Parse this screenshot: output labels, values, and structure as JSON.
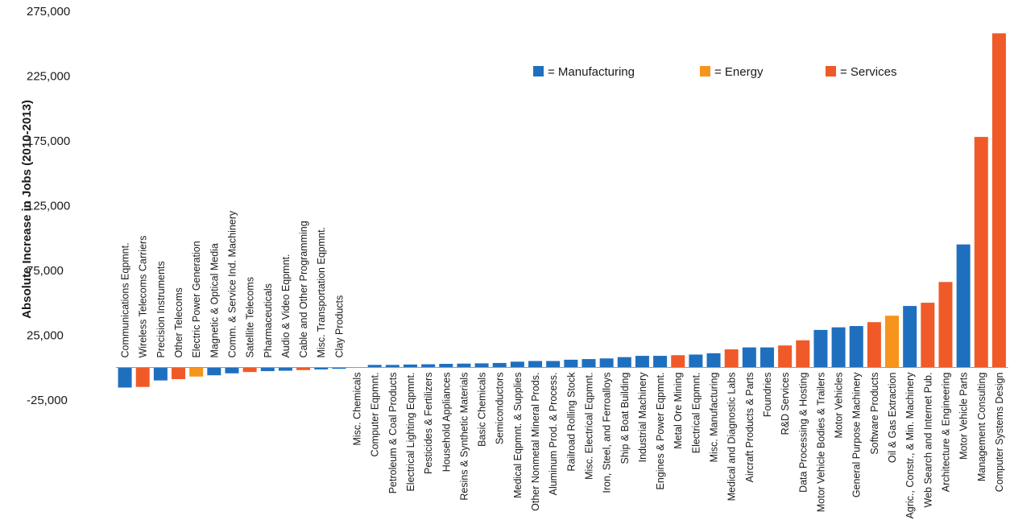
{
  "chart_data": {
    "type": "bar",
    "ylabel": "Absolute Increase in Jobs (2010-2013)",
    "ylim": [
      -50000,
      275000
    ],
    "yticks": [
      -25000,
      25000,
      75000,
      125000,
      175000,
      225000,
      275000
    ],
    "ytick_labels": [
      "-25,000",
      "25,000",
      "75,000",
      "125,000",
      "175,000",
      "225,000",
      "275,000"
    ],
    "grid": false,
    "legend_position": "top-right",
    "sectors": [
      {
        "key": "manufacturing",
        "label": "= Manufacturing",
        "color": "#1f6fbf"
      },
      {
        "key": "energy",
        "label": "= Energy",
        "color": "#f7941d"
      },
      {
        "key": "services",
        "label": "= Services",
        "color": "#f05a28"
      }
    ],
    "categories": [
      "Communications Eqpmnt.",
      "Wireless Telecoms Carriers",
      "Precision Instruments",
      "Other Telecoms",
      "Electric Power Generation",
      "Magnetic & Optical Media",
      "Comm. & Service Ind. Machinery",
      "Satellite Telecoms",
      "Pharmaceuticals",
      "Audio & Video Eqpmnt.",
      "Cable and Other Programming",
      "Misc. Transportation Eqpmnt.",
      "Clay Products",
      "Misc. Chemicals",
      "Computer Eqpmnt.",
      "Petroleum & Coal Products",
      "Electrical Lighting Eqpmnt.",
      "Pesticides & Fertilizers",
      "Household Appliances",
      "Resins & Synthetic Materials",
      "Basic Chemicals",
      "Semiconductors",
      "Medical Eqpmnt. & Supplies",
      "Other Nonmetal Mineral Prods.",
      "Aluminum Prod. & Process.",
      "Railroad Rolling Stock",
      "Misc. Electrical Eqpmnt.",
      "Iron, Steel, and Ferroalloys",
      "Ship & Boat Building",
      "Industrial Machinery",
      "Engines & Power Eqpmnt.",
      "Metal Ore Mining",
      "Electrical Eqpmnt.",
      "Misc. Manufacturing",
      "Medical and Diagnostic Labs",
      "Aircraft Products & Parts",
      "Foundries",
      "R&D Services",
      "Data Processing & Hosting",
      "Motor Vehicle Bodies & Trailers",
      "Motor Vehicles",
      "General Purpose Machinery",
      "Software Products",
      "Oil & Gas Extraction",
      "Agric., Constr., & Min. Machinery",
      "Web Search and Internet Pub.",
      "Architecture & Engineering",
      "Motor Vehicle Parts",
      "Management Consulting",
      "Computer Systems Design"
    ],
    "sector": [
      "manufacturing",
      "services",
      "manufacturing",
      "services",
      "energy",
      "manufacturing",
      "manufacturing",
      "services",
      "manufacturing",
      "manufacturing",
      "services",
      "manufacturing",
      "manufacturing",
      "manufacturing",
      "manufacturing",
      "manufacturing",
      "manufacturing",
      "manufacturing",
      "manufacturing",
      "manufacturing",
      "manufacturing",
      "manufacturing",
      "manufacturing",
      "manufacturing",
      "manufacturing",
      "manufacturing",
      "manufacturing",
      "manufacturing",
      "manufacturing",
      "manufacturing",
      "manufacturing",
      "services",
      "manufacturing",
      "manufacturing",
      "services",
      "manufacturing",
      "manufacturing",
      "services",
      "services",
      "manufacturing",
      "manufacturing",
      "manufacturing",
      "services",
      "energy",
      "manufacturing",
      "services",
      "services",
      "manufacturing",
      "services",
      "services"
    ],
    "values": [
      -15500,
      -15000,
      -10000,
      -9000,
      -7000,
      -6000,
      -4500,
      -3500,
      -2800,
      -2500,
      -2000,
      -1500,
      -1000,
      0,
      2000,
      2000,
      2300,
      2500,
      2800,
      3000,
      3200,
      3500,
      4500,
      5000,
      5000,
      6000,
      6500,
      7000,
      8000,
      9000,
      9000,
      9500,
      10000,
      11000,
      14000,
      15500,
      15500,
      17000,
      21000,
      29000,
      31000,
      32000,
      35000,
      40000,
      47500,
      50000,
      66000,
      95000,
      178000,
      258000
    ]
  }
}
